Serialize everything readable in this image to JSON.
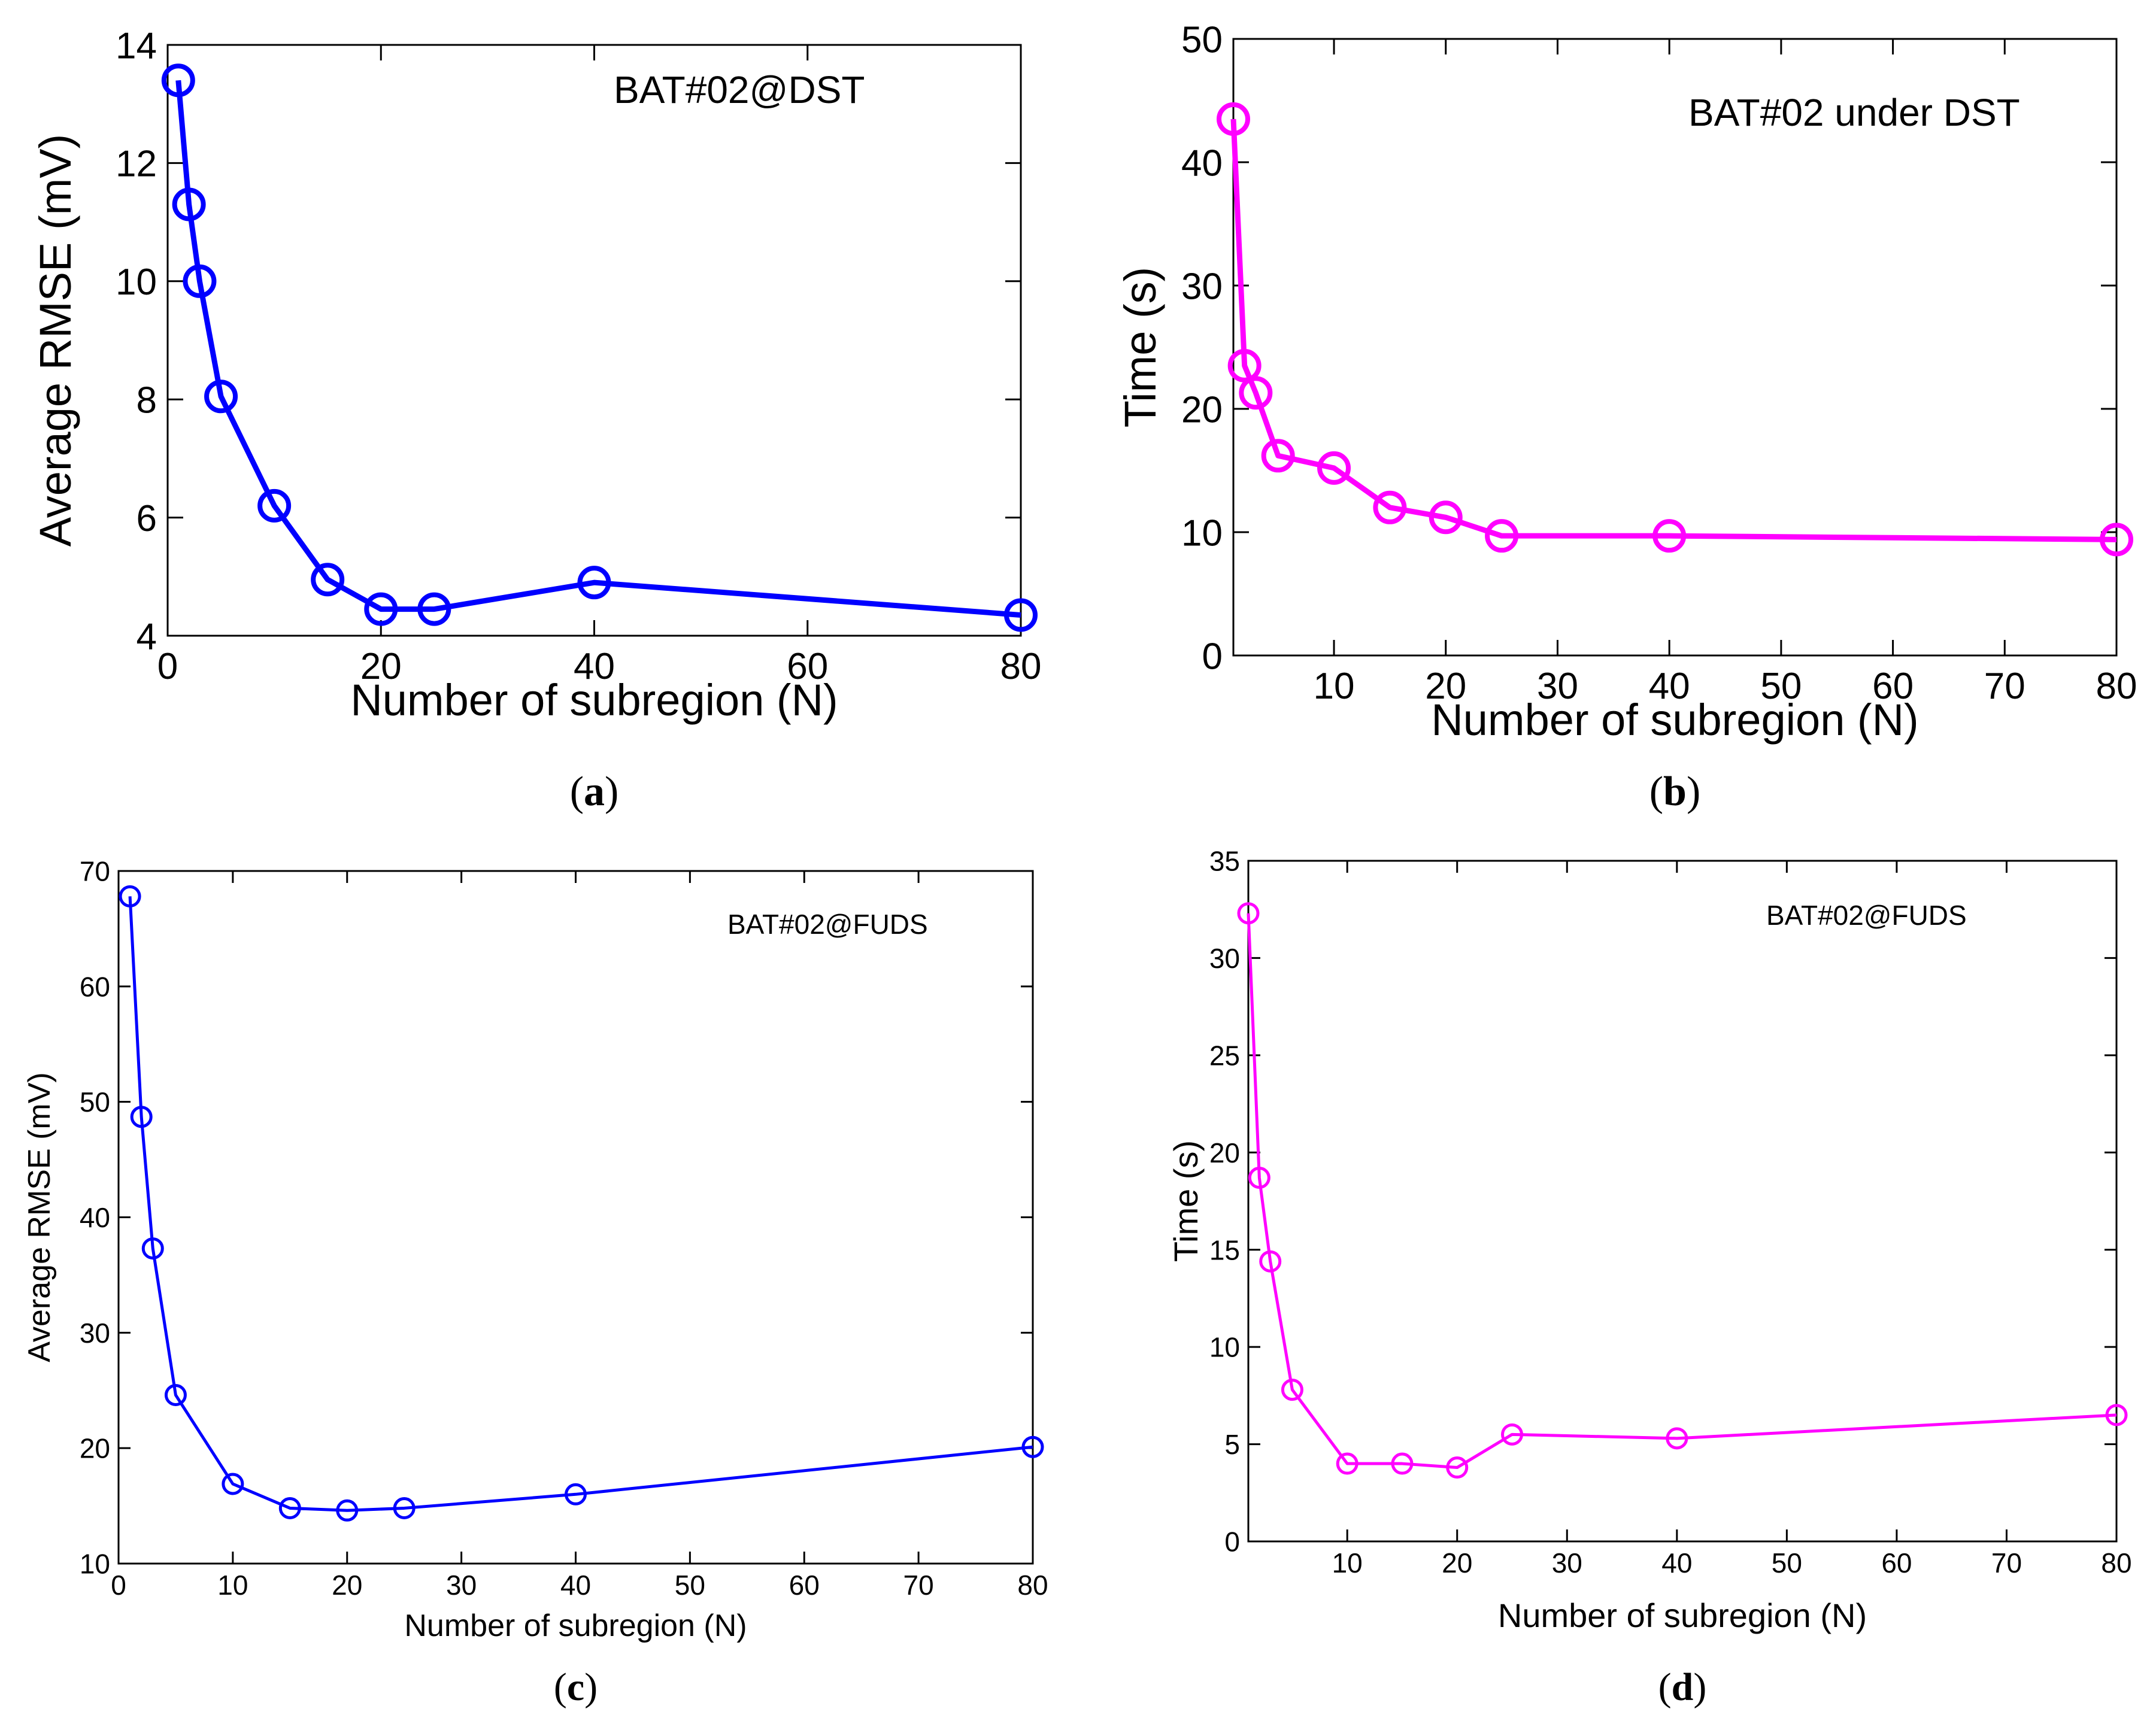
{
  "chart_data": [
    {
      "id": "a",
      "type": "line",
      "caption": "a",
      "annotation": "BAT#02@DST",
      "xlabel": "Number of subregion (N)",
      "ylabel": "Average RMSE (mV)",
      "xlim": [
        0,
        80
      ],
      "ylim": [
        4,
        14
      ],
      "xticks": [
        0,
        20,
        40,
        60,
        80
      ],
      "yticks": [
        4,
        6,
        8,
        10,
        12,
        14
      ],
      "color": "#0000ff",
      "marker": "circle",
      "x": [
        1,
        2,
        3,
        5,
        10,
        15,
        20,
        25,
        40,
        80
      ],
      "values": [
        13.4,
        11.3,
        10.0,
        8.05,
        6.2,
        4.95,
        4.45,
        4.45,
        4.9,
        4.35
      ]
    },
    {
      "id": "b",
      "type": "line",
      "caption": "b",
      "annotation": "BAT#02 under DST",
      "xlabel": "Number of subregion (N)",
      "ylabel": "Time (s)",
      "xlim": [
        1,
        80
      ],
      "ylim": [
        0,
        50
      ],
      "xticks": [
        10,
        20,
        30,
        40,
        50,
        60,
        70,
        80
      ],
      "yticks": [
        0,
        10,
        20,
        30,
        40,
        50
      ],
      "color": "#ff00ff",
      "marker": "circle",
      "x": [
        1,
        2,
        3,
        5,
        10,
        15,
        20,
        25,
        40,
        80
      ],
      "values": [
        43.5,
        23.5,
        21.3,
        16.2,
        15.2,
        12.0,
        11.2,
        9.7,
        9.7,
        9.4
      ]
    },
    {
      "id": "c",
      "type": "line",
      "caption": "c",
      "annotation": "BAT#02@FUDS",
      "xlabel": "Number of subregion (N)",
      "ylabel": "Average RMSE (mV)",
      "xlim": [
        0,
        80
      ],
      "ylim": [
        10,
        70
      ],
      "xticks": [
        0,
        10,
        20,
        30,
        40,
        50,
        60,
        70,
        80
      ],
      "yticks": [
        10,
        20,
        30,
        40,
        50,
        60,
        70
      ],
      "color": "#0000ff",
      "marker": "circle",
      "x": [
        1,
        2,
        3,
        5,
        10,
        15,
        20,
        25,
        40,
        80
      ],
      "values": [
        67.8,
        48.7,
        37.3,
        24.6,
        16.9,
        14.8,
        14.6,
        14.8,
        16.0,
        20.1
      ]
    },
    {
      "id": "d",
      "type": "line",
      "caption": "d",
      "annotation": "BAT#02@FUDS",
      "xlabel": "Number of subregion (N)",
      "ylabel": "Time (s)",
      "xlim": [
        1,
        80
      ],
      "ylim": [
        0,
        35
      ],
      "xticks": [
        10,
        20,
        30,
        40,
        50,
        60,
        70,
        80
      ],
      "yticks": [
        0,
        5,
        10,
        15,
        20,
        25,
        30,
        35
      ],
      "color": "#ff00ff",
      "marker": "circle",
      "x": [
        1,
        2,
        3,
        5,
        10,
        15,
        20,
        25,
        40,
        80
      ],
      "values": [
        32.3,
        18.7,
        14.4,
        7.8,
        4.0,
        4.0,
        3.8,
        5.5,
        5.3,
        6.5
      ]
    }
  ]
}
